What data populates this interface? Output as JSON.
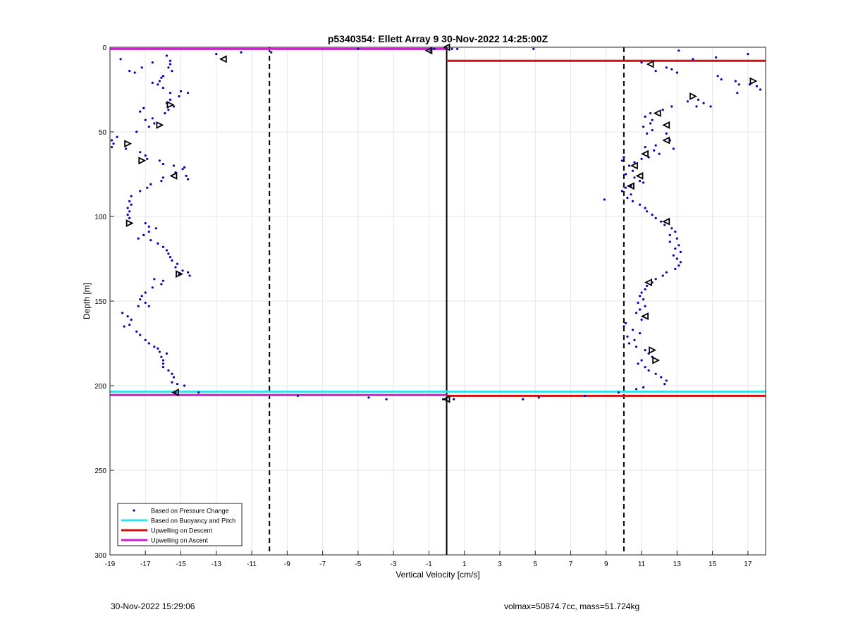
{
  "chart_data": {
    "type": "scatter",
    "title": "p5340354: Ellett Array 9 30-Nov-2022 14:25:00Z",
    "xlabel": "Vertical Velocity [cm/s]",
    "ylabel": "Depth [m]",
    "xlim": [
      -19,
      18
    ],
    "ylim": [
      0,
      300
    ],
    "y_reversed": true,
    "grid": true,
    "xticks": [
      "-19",
      "-17",
      "-15",
      "-13",
      "-11",
      "-9",
      "-7",
      "-5",
      "-3",
      "-1",
      "1",
      "3",
      "5",
      "7",
      "9",
      "11",
      "13",
      "15",
      "17"
    ],
    "yticks": [
      "0",
      "50",
      "100",
      "150",
      "200",
      "250",
      "300"
    ],
    "legend_position": "bottom-left",
    "legend": [
      {
        "label": "Based on Pressure Change",
        "color": "#0000cc"
      },
      {
        "label": "Based on Buoyancy and Pitch",
        "color": "#33e0e6"
      },
      {
        "label": "Upwelling on Descent",
        "color": "#cc1111"
      },
      {
        "label": "Upwelling on Ascent",
        "color": "#cc22cc"
      }
    ],
    "reference_lines": {
      "dashed_x": [
        -10,
        10
      ],
      "solid_x": 0
    },
    "series": [
      {
        "name": "Based on Pressure Change",
        "color": "#0000cc",
        "points": [
          [
            -18.4,
            7
          ],
          [
            -17.9,
            14
          ],
          [
            -17.6,
            15
          ],
          [
            -17.2,
            12
          ],
          [
            -16.6,
            9
          ],
          [
            -15.8,
            5
          ],
          [
            -15.6,
            8
          ],
          [
            -15.6,
            10
          ],
          [
            -15.7,
            12
          ],
          [
            -15.5,
            14
          ],
          [
            -16.0,
            17
          ],
          [
            -16.1,
            18
          ],
          [
            -16.2,
            20
          ],
          [
            -16.6,
            21
          ],
          [
            -16.3,
            22
          ],
          [
            -16.0,
            24
          ],
          [
            -15.6,
            27
          ],
          [
            -15.0,
            26
          ],
          [
            -14.6,
            27
          ],
          [
            -15.1,
            29
          ],
          [
            -15.6,
            31
          ],
          [
            -15.8,
            33
          ],
          [
            -15.4,
            35
          ],
          [
            -15.7,
            37
          ],
          [
            -15.9,
            39
          ],
          [
            -16.6,
            42
          ],
          [
            -16.5,
            45
          ],
          [
            -16.8,
            47
          ],
          [
            -17.0,
            43
          ],
          [
            -17.3,
            38
          ],
          [
            -17.1,
            36
          ],
          [
            -17.5,
            50
          ],
          [
            -18.6,
            53
          ],
          [
            -18.9,
            55
          ],
          [
            -18.8,
            57
          ],
          [
            -18.9,
            59
          ],
          [
            -18.1,
            60
          ],
          [
            -17.3,
            62
          ],
          [
            -17.0,
            64
          ],
          [
            -16.9,
            66
          ],
          [
            -16.2,
            67
          ],
          [
            -16.0,
            69
          ],
          [
            -15.4,
            70
          ],
          [
            -14.8,
            71
          ],
          [
            -14.9,
            72
          ],
          [
            -14.7,
            76
          ],
          [
            -14.6,
            78
          ],
          [
            -15.3,
            74
          ],
          [
            -16.0,
            77
          ],
          [
            -16.1,
            79
          ],
          [
            -16.7,
            81
          ],
          [
            -16.9,
            83
          ],
          [
            -17.3,
            85
          ],
          [
            -17.8,
            88
          ],
          [
            -17.9,
            91
          ],
          [
            -17.8,
            93
          ],
          [
            -18.0,
            95
          ],
          [
            -17.9,
            97
          ],
          [
            -18.0,
            99
          ],
          [
            -17.9,
            101
          ],
          [
            -17.8,
            104
          ],
          [
            -17.0,
            104
          ],
          [
            -16.8,
            106
          ],
          [
            -16.4,
            107
          ],
          [
            -16.8,
            109
          ],
          [
            -17.1,
            111
          ],
          [
            -17.4,
            113
          ],
          [
            -16.7,
            114
          ],
          [
            -16.3,
            116
          ],
          [
            -16.0,
            118
          ],
          [
            -15.8,
            120
          ],
          [
            -15.7,
            122
          ],
          [
            -15.6,
            124
          ],
          [
            -15.5,
            126
          ],
          [
            -15.2,
            128
          ],
          [
            -15.3,
            130
          ],
          [
            -14.9,
            132
          ],
          [
            -14.6,
            133
          ],
          [
            -14.5,
            135
          ],
          [
            -15.1,
            134
          ],
          [
            -16.0,
            138
          ],
          [
            -16.1,
            140
          ],
          [
            -16.5,
            137
          ],
          [
            -16.6,
            142
          ],
          [
            -17.0,
            145
          ],
          [
            -17.2,
            147
          ],
          [
            -17.3,
            149
          ],
          [
            -17.0,
            151
          ],
          [
            -16.8,
            153
          ],
          [
            -17.4,
            153
          ],
          [
            -18.3,
            157
          ],
          [
            -18.0,
            159
          ],
          [
            -17.8,
            161
          ],
          [
            -17.9,
            164
          ],
          [
            -18.2,
            165
          ],
          [
            -17.5,
            168
          ],
          [
            -17.3,
            170
          ],
          [
            -17.0,
            173
          ],
          [
            -16.8,
            175
          ],
          [
            -16.5,
            177
          ],
          [
            -16.3,
            178
          ],
          [
            -16.2,
            180
          ],
          [
            -15.8,
            181
          ],
          [
            -16.1,
            183
          ],
          [
            -16.0,
            185
          ],
          [
            -16.0,
            187
          ],
          [
            -16.0,
            189
          ],
          [
            -15.7,
            191
          ],
          [
            -15.5,
            193
          ],
          [
            -15.4,
            195
          ],
          [
            -15.5,
            198
          ],
          [
            -15.2,
            199
          ],
          [
            -14.8,
            200
          ],
          [
            -14.0,
            204
          ],
          [
            -15.3,
            204
          ],
          [
            -13.0,
            4
          ],
          [
            -11.6,
            3
          ],
          [
            -9.9,
            3
          ],
          [
            -5.0,
            1
          ],
          [
            -0.9,
            2
          ],
          [
            -0.7,
            1
          ],
          [
            0.3,
            1
          ],
          [
            0.6,
            1
          ],
          [
            4.9,
            1
          ],
          [
            -8.4,
            206
          ],
          [
            -4.4,
            207
          ],
          [
            -3.4,
            208
          ],
          [
            -0.2,
            208
          ],
          [
            0.4,
            208
          ],
          [
            4.3,
            208
          ],
          [
            5.2,
            207
          ],
          [
            7.8,
            206
          ],
          [
            9.7,
            204
          ],
          [
            13.1,
            2
          ],
          [
            15.2,
            6
          ],
          [
            17.0,
            4
          ],
          [
            13.9,
            7
          ],
          [
            11.0,
            9
          ],
          [
            12.4,
            12
          ],
          [
            11.8,
            14
          ],
          [
            12.7,
            13
          ],
          [
            13.0,
            15
          ],
          [
            15.3,
            17
          ],
          [
            15.5,
            19
          ],
          [
            16.3,
            20
          ],
          [
            16.5,
            22
          ],
          [
            17.1,
            22
          ],
          [
            17.5,
            23
          ],
          [
            17.7,
            25
          ],
          [
            16.4,
            27
          ],
          [
            14.2,
            31
          ],
          [
            13.6,
            32
          ],
          [
            14.5,
            33
          ],
          [
            14.1,
            35
          ],
          [
            14.9,
            35
          ],
          [
            12.7,
            35
          ],
          [
            12.2,
            37
          ],
          [
            11.5,
            39
          ],
          [
            11.2,
            41
          ],
          [
            11.6,
            43
          ],
          [
            11.5,
            45
          ],
          [
            11.1,
            47
          ],
          [
            11.6,
            49
          ],
          [
            11.3,
            51
          ],
          [
            12.4,
            51
          ],
          [
            12.6,
            55
          ],
          [
            11.8,
            58
          ],
          [
            11.2,
            59
          ],
          [
            11.7,
            61
          ],
          [
            12.0,
            63
          ],
          [
            12.8,
            60
          ],
          [
            11.4,
            65
          ],
          [
            11.0,
            66
          ],
          [
            10.6,
            68
          ],
          [
            10.0,
            65
          ],
          [
            9.9,
            67
          ],
          [
            10.3,
            70
          ],
          [
            10.5,
            73
          ],
          [
            10.1,
            75
          ],
          [
            10.6,
            77
          ],
          [
            10.9,
            79
          ],
          [
            11.1,
            80
          ],
          [
            10.4,
            82
          ],
          [
            10.1,
            83
          ],
          [
            9.9,
            85
          ],
          [
            10.4,
            87
          ],
          [
            10.2,
            89
          ],
          [
            8.9,
            90
          ],
          [
            10.5,
            91
          ],
          [
            10.9,
            93
          ],
          [
            11.2,
            95
          ],
          [
            11.3,
            97
          ],
          [
            11.6,
            99
          ],
          [
            11.8,
            101
          ],
          [
            12.1,
            103
          ],
          [
            12.3,
            105
          ],
          [
            12.7,
            107
          ],
          [
            12.9,
            109
          ],
          [
            12.6,
            111
          ],
          [
            13.0,
            113
          ],
          [
            12.6,
            115
          ],
          [
            13.1,
            117
          ],
          [
            12.9,
            119
          ],
          [
            13.2,
            121
          ],
          [
            12.8,
            123
          ],
          [
            13.0,
            125
          ],
          [
            13.2,
            127
          ],
          [
            13.1,
            129
          ],
          [
            12.9,
            131
          ],
          [
            12.4,
            133
          ],
          [
            12.2,
            135
          ],
          [
            11.8,
            137
          ],
          [
            11.6,
            139
          ],
          [
            11.3,
            141
          ],
          [
            11.2,
            143
          ],
          [
            11.0,
            145
          ],
          [
            10.9,
            147
          ],
          [
            11.1,
            149
          ],
          [
            10.8,
            151
          ],
          [
            11.2,
            153
          ],
          [
            10.9,
            155
          ],
          [
            10.7,
            157
          ],
          [
            11.1,
            159
          ],
          [
            11.0,
            161
          ],
          [
            10.1,
            163
          ],
          [
            10.0,
            165
          ],
          [
            10.5,
            167
          ],
          [
            10.9,
            169
          ],
          [
            10.2,
            171
          ],
          [
            10.6,
            173
          ],
          [
            10.3,
            175
          ],
          [
            10.7,
            177
          ],
          [
            11.2,
            179
          ],
          [
            11.4,
            181
          ],
          [
            11.6,
            183
          ],
          [
            11.0,
            185
          ],
          [
            10.8,
            187
          ],
          [
            11.2,
            189
          ],
          [
            11.4,
            191
          ],
          [
            11.8,
            193
          ],
          [
            12.1,
            195
          ],
          [
            12.4,
            197
          ],
          [
            12.3,
            199
          ],
          [
            11.1,
            201
          ],
          [
            10.7,
            202
          ]
        ]
      },
      {
        "name": "Ascent/descent markers",
        "color": "#000000",
        "marker": "triangle",
        "points": [
          [
            -12.6,
            7,
            "left"
          ],
          [
            -15.6,
            34,
            "right"
          ],
          [
            -16.2,
            46,
            "right"
          ],
          [
            -18.0,
            57,
            "right"
          ],
          [
            -17.2,
            67,
            "right"
          ],
          [
            -15.4,
            76,
            "left"
          ],
          [
            -17.9,
            104,
            "right"
          ],
          [
            -15.1,
            134,
            "right"
          ],
          [
            -15.3,
            204,
            "left"
          ],
          [
            -1.0,
            2,
            "left"
          ],
          [
            0.0,
            0,
            "left"
          ],
          [
            0.0,
            208,
            "left"
          ],
          [
            11.5,
            10,
            "left"
          ],
          [
            17.3,
            20,
            "right"
          ],
          [
            13.9,
            29,
            "right"
          ],
          [
            11.9,
            39,
            "left"
          ],
          [
            12.4,
            46,
            "left"
          ],
          [
            12.4,
            55,
            "left"
          ],
          [
            11.2,
            63,
            "left"
          ],
          [
            10.6,
            70,
            "left"
          ],
          [
            10.9,
            76,
            "left"
          ],
          [
            10.4,
            82,
            "left"
          ],
          [
            12.4,
            103,
            "left"
          ],
          [
            11.4,
            139,
            "left"
          ],
          [
            11.2,
            159,
            "left"
          ],
          [
            11.6,
            179,
            "right"
          ],
          [
            11.8,
            185,
            "right"
          ]
        ]
      }
    ],
    "lines": [
      {
        "name": "Upwelling on Ascent",
        "color": "#cc22cc",
        "y": 1,
        "x": [
          -19,
          0
        ]
      },
      {
        "name": "Upwelling on Descent",
        "color": "#cc1111",
        "y": 8,
        "x": [
          0,
          18
        ]
      },
      {
        "name": "Based on Buoyancy and Pitch",
        "color": "#33e0e6",
        "y": 203.5,
        "x": [
          -19,
          18
        ]
      },
      {
        "name": "Upwelling on Ascent",
        "color": "#cc22cc",
        "y": 205.5,
        "x": [
          -19,
          0
        ]
      },
      {
        "name": "Upwelling on Descent",
        "color": "#cc1111",
        "y": 206,
        "x": [
          0,
          18
        ]
      }
    ]
  },
  "footer": {
    "left": "30-Nov-2022 15:29:06",
    "right": "volmax=50874.7cc, mass=51.724kg"
  }
}
